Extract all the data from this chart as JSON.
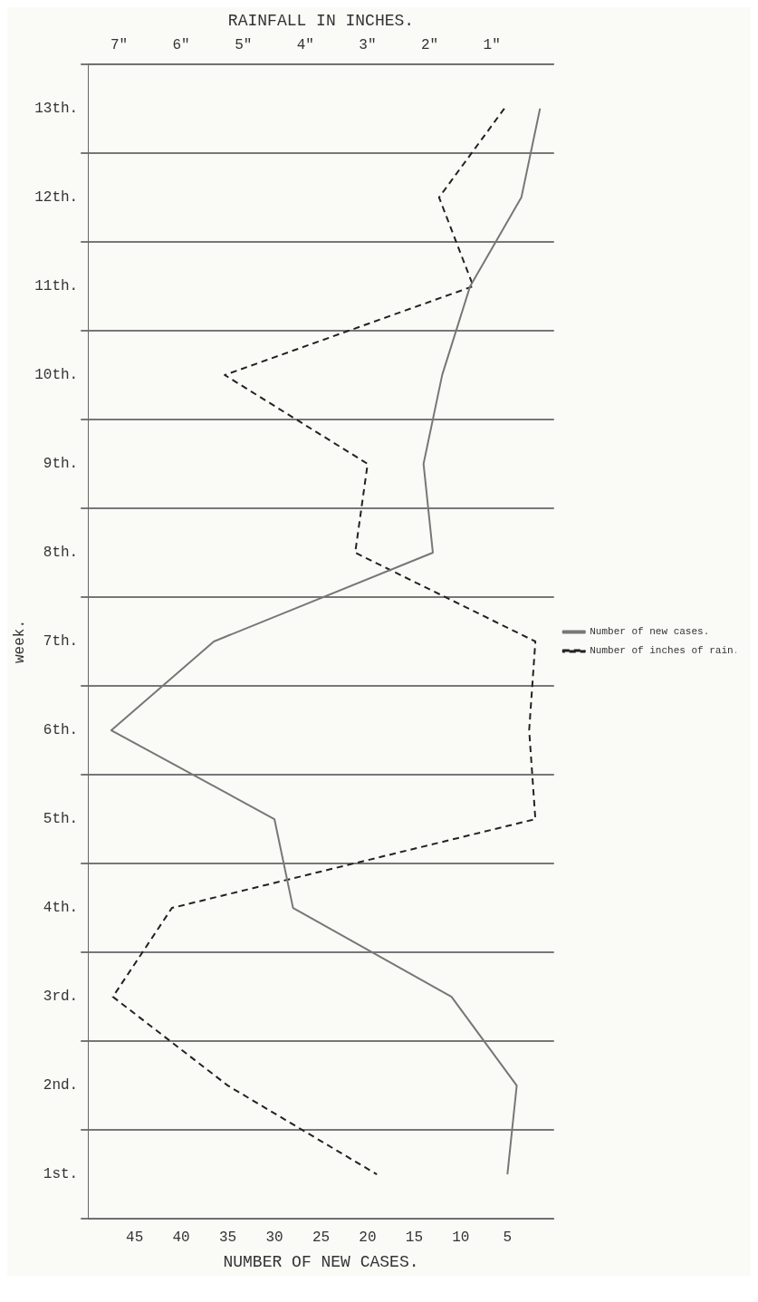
{
  "chart_data": {
    "type": "line",
    "orientation": "horizontal",
    "xlabel": "NUMBER OF NEW CASES.",
    "x2label": "RAINFALL IN INCHES.",
    "ylabel": "week.",
    "categories": [
      "13th.",
      "12th.",
      "11th.",
      "10th.",
      "9th.",
      "8th.",
      "7th.",
      "6th.",
      "5th.",
      "4th.",
      "3rd.",
      "2nd.",
      "1st."
    ],
    "series": [
      {
        "name": "Number of new cases.",
        "color": "#777777",
        "line_style": "solid",
        "values": [
          1.5,
          3.5,
          9,
          12,
          14,
          13,
          36.5,
          47.5,
          30,
          28,
          11,
          4,
          5
        ]
      },
      {
        "name": "Number of inches of rain.",
        "color": "#222222",
        "line_style": "dashed",
        "axis": "x2",
        "values": [
          0.8,
          1.85,
          1.3,
          5.3,
          3.0,
          3.2,
          0.3,
          0.4,
          0.3,
          6.15,
          7.1,
          5.25,
          2.85
        ]
      }
    ],
    "xlim": [
      50,
      0
    ],
    "xticks": [
      5,
      10,
      15,
      20,
      25,
      30,
      35,
      40,
      45
    ],
    "x2lim": [
      7.5,
      0
    ],
    "x2ticks": [
      {
        "value": 1,
        "label": "1\""
      },
      {
        "value": 2,
        "label": "2\""
      },
      {
        "value": 3,
        "label": "3\""
      },
      {
        "value": 4,
        "label": "4\""
      },
      {
        "value": 5,
        "label": "5\""
      },
      {
        "value": 6,
        "label": "6\""
      },
      {
        "value": 7,
        "label": "7\""
      }
    ],
    "grid": "y",
    "legend": "right",
    "marker": "none"
  }
}
